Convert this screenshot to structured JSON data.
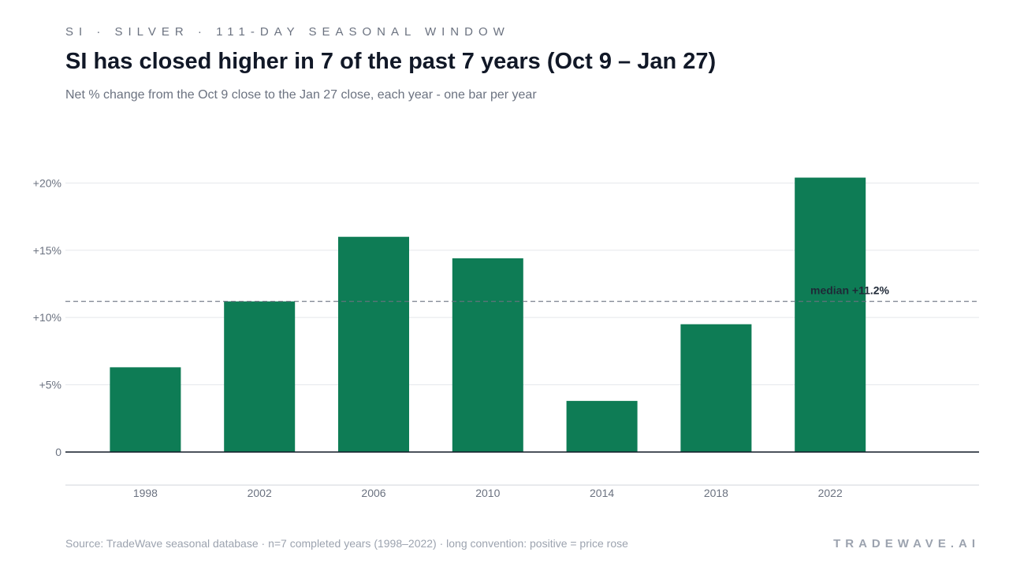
{
  "header": {
    "eyebrow": "SI · SILVER · 111-DAY SEASONAL WINDOW",
    "title": "SI has closed higher in 7 of the past 7 years (Oct 9 – Jan 27)",
    "subtitle": "Net % change from the Oct 9 close to the Jan 27 close, each year - one bar per year"
  },
  "footer": {
    "source": "Source: TradeWave seasonal database · n=7 completed years (1998–2022) · long convention: positive = price rose",
    "brand": "TRADEWAVE.AI"
  },
  "colors": {
    "bar": "#0e7c55",
    "grid": "#e5e7eb",
    "axis": "#111827",
    "median": "#6b7280",
    "tick_text": "#6b7280",
    "median_text": "#1f2937"
  },
  "chart_data": {
    "type": "bar",
    "categories": [
      "1998",
      "2002",
      "2006",
      "2010",
      "2014",
      "2018",
      "2022"
    ],
    "values": [
      6.3,
      11.2,
      16.0,
      14.4,
      3.8,
      9.5,
      20.4
    ],
    "ylim": [
      0,
      20.9
    ],
    "yticks": [
      0,
      5,
      10,
      15,
      20
    ],
    "ytick_labels": [
      "0",
      "+5%",
      "+10%",
      "+15%",
      "+20%"
    ],
    "median": 11.2,
    "median_label": "median +11.2%",
    "grid": true,
    "legend": "none"
  }
}
